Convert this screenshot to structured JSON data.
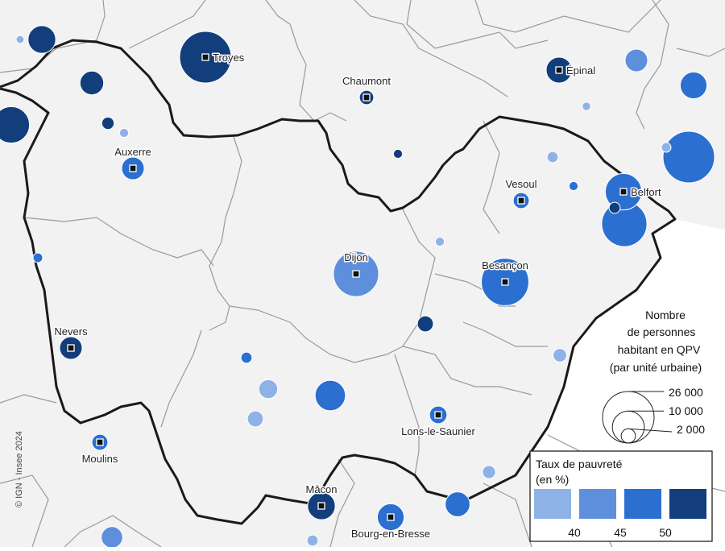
{
  "map": {
    "colors": {
      "land": "#f2f2f2",
      "region_fill": "#f2f2f2",
      "outside_fill": "#ffffff",
      "dept_border": "#9a9a9a",
      "region_border": "#1a1a1a",
      "class1": "#8fb2e6",
      "class2": "#5e8fdc",
      "class3": "#2b6fd0",
      "class4": "#123e7c"
    },
    "cities": [
      {
        "name": "Troyes",
        "class": 4,
        "pop": 26000
      },
      {
        "name": "Chaumont",
        "class": 4,
        "pop": 2000
      },
      {
        "name": "Épinal",
        "class": 4,
        "pop": 6500
      },
      {
        "name": "Auxerre",
        "class": 3,
        "pop": 5000
      },
      {
        "name": "Vesoul",
        "class": 3,
        "pop": 2500
      },
      {
        "name": "Belfort",
        "class": 3,
        "pop": 13000
      },
      {
        "name": "Dijon",
        "class": 2,
        "pop": 20000
      },
      {
        "name": "Besançon",
        "class": 3,
        "pop": 22000
      },
      {
        "name": "Nevers",
        "class": 4,
        "pop": 5000
      },
      {
        "name": "Lons-le-Saunier",
        "class": 3,
        "pop": 3000
      },
      {
        "name": "Moulins",
        "class": 3,
        "pop": 2500
      },
      {
        "name": "Mâcon",
        "class": 4,
        "pop": 7500
      },
      {
        "name": "Bourg-en-Bresse",
        "class": 3,
        "pop": 7000
      }
    ],
    "other_units": [
      {
        "class": 1,
        "pop": 600
      },
      {
        "class": 4,
        "pop": 7500
      },
      {
        "class": 4,
        "pop": 5500
      },
      {
        "class": 4,
        "pop": 13000
      },
      {
        "class": 4,
        "pop": 1500
      },
      {
        "class": 1,
        "pop": 800
      },
      {
        "class": 2,
        "pop": 5000
      },
      {
        "class": 1,
        "pop": 700
      },
      {
        "class": 3,
        "pop": 7000
      },
      {
        "class": 4,
        "pop": 800
      },
      {
        "class": 3,
        "pop": 800
      },
      {
        "class": 1,
        "pop": 1200
      },
      {
        "class": 3,
        "pop": 26000
      },
      {
        "class": 1,
        "pop": 900
      },
      {
        "class": 3,
        "pop": 20000
      },
      {
        "class": 4,
        "pop": 1200
      },
      {
        "class": 3,
        "pop": 900
      },
      {
        "class": 1,
        "pop": 800
      },
      {
        "class": 4,
        "pop": 2500
      },
      {
        "class": 1,
        "pop": 1800
      },
      {
        "class": 3,
        "pop": 1200
      },
      {
        "class": 1,
        "pop": 3500
      },
      {
        "class": 1,
        "pop": 2500
      },
      {
        "class": 3,
        "pop": 9000
      },
      {
        "class": 1,
        "pop": 1700
      },
      {
        "class": 3,
        "pop": 6000
      },
      {
        "class": 2,
        "pop": 4500
      },
      {
        "class": 1,
        "pop": 1200
      }
    ]
  },
  "legend": {
    "size_title": [
      "Nombre",
      "de personnes",
      "habitant en QPV",
      "(par unité urbaine)"
    ],
    "size_values": [
      26000,
      10000,
      2000
    ],
    "size_labels": [
      "26 000",
      "10 000",
      "2 000"
    ],
    "color_title": [
      "Taux de pauvreté",
      "(en %)"
    ],
    "color_breaks": [
      "40",
      "45",
      "50"
    ]
  },
  "credit": "© IGN - Insee 2024"
}
